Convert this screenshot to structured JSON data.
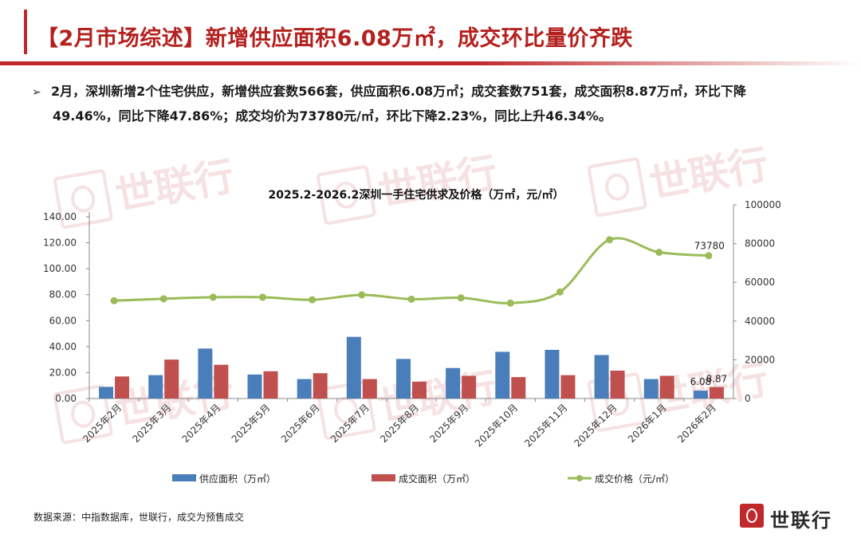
{
  "header": {
    "title": "【2月市场综述】新增供应面积6.08万㎡，成交环比量价齐跌"
  },
  "summary": {
    "bullet": "➢",
    "line1": "2月，深圳新增2个住宅供应，新增供应套数566套，供应面积6.08万㎡；成交套数751套，成交面积8.87万㎡，环比下降",
    "line2": "49.46%，同比下降47.86%；成交均价为73780元/㎡，环比下降2.23%，同比上升46.34%。"
  },
  "watermark": {
    "text": "世联行"
  },
  "chart_data": {
    "type": "bar",
    "title": "2025.2-2026.2深圳一手住宅供求及价格（万㎡，元/㎡）",
    "categories": [
      "2025年2月",
      "2025年3月",
      "2025年4月",
      "2025年5月",
      "2025年6月",
      "2025年7月",
      "2025年8月",
      "2025年9月",
      "2025年10月",
      "2025年11月",
      "2025年12月",
      "2026年1月",
      "2026年2月"
    ],
    "series": [
      {
        "name": "供应面积（万㎡）",
        "kind": "bar",
        "axis": "left",
        "color": "#4a7ebb",
        "values": [
          9,
          18,
          38.5,
          18.5,
          15,
          47.5,
          30.5,
          23.5,
          36,
          37.5,
          33.5,
          15,
          6.08
        ]
      },
      {
        "name": "成交面积（万㎡）",
        "kind": "bar",
        "axis": "left",
        "color": "#c0504d",
        "values": [
          17,
          30,
          26,
          21,
          19.5,
          15,
          13,
          17.5,
          16.5,
          18,
          21.5,
          17.5,
          8.87
        ]
      },
      {
        "name": "成交价格（元/㎡）",
        "kind": "line",
        "axis": "right",
        "color": "#9bbb59",
        "values": [
          50500,
          51500,
          52300,
          52300,
          51000,
          53500,
          51300,
          52000,
          49300,
          55000,
          82000,
          75500,
          73780
        ]
      }
    ],
    "ylim_left": [
      0,
      140
    ],
    "yticks_left": [
      "0.00",
      "20.00",
      "40.00",
      "60.00",
      "80.00",
      "100.00",
      "120.00",
      "140.00"
    ],
    "ylim_right": [
      0,
      100000
    ],
    "yticks_right": [
      "0",
      "20000",
      "40000",
      "60000",
      "80000",
      "100000"
    ],
    "data_labels": [
      {
        "series": 0,
        "index": 12,
        "text": "6.08"
      },
      {
        "series": 1,
        "index": 12,
        "text": "8.87"
      },
      {
        "series": 2,
        "index": 12,
        "text": "73780"
      }
    ],
    "legend_position": "bottom",
    "grid": false
  },
  "footer": {
    "source": "数据来源：中指数据库，世联行，成交为预售成交",
    "logo_text": "世联行"
  }
}
